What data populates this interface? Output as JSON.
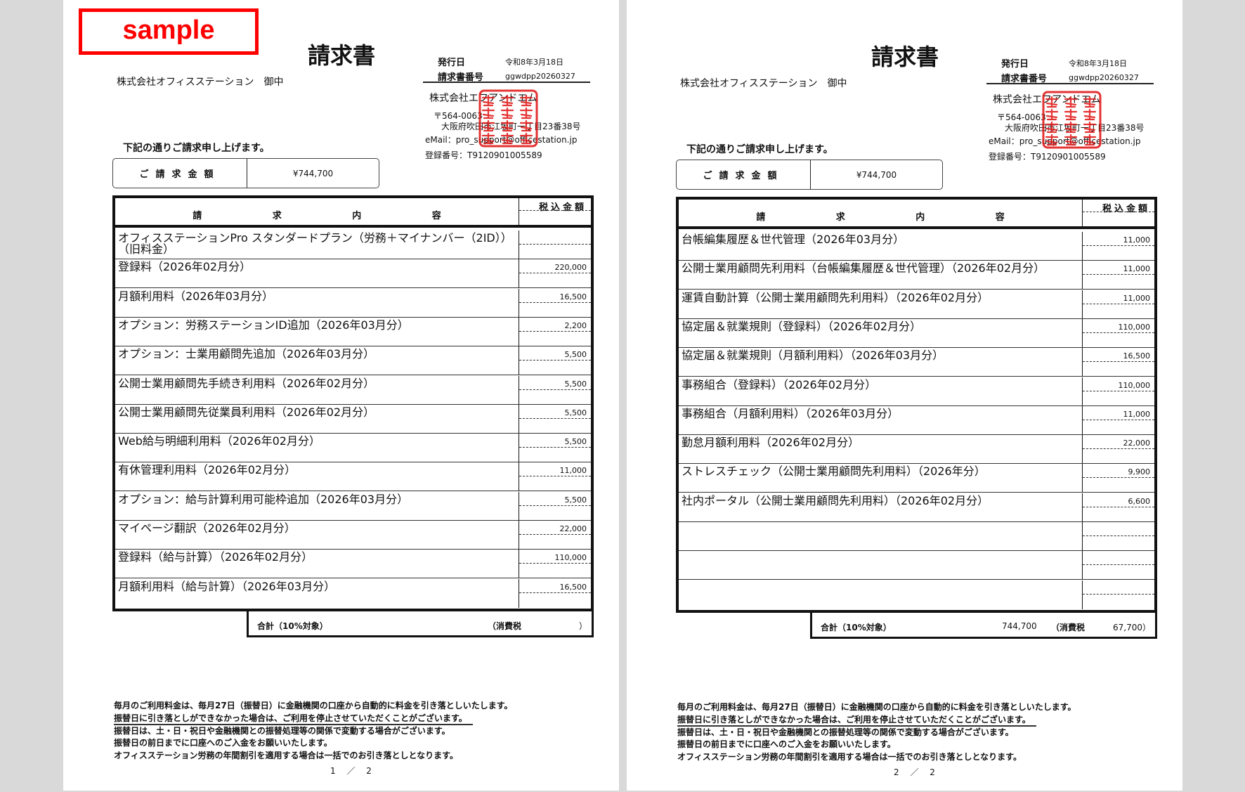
{
  "sample_label": "sample",
  "colors": {
    "background": "#d9d9d9",
    "stamp": "#e01010",
    "sample": "#ff0000"
  },
  "pages": [
    {
      "title": "請求書",
      "recipient": "株式会社オフィスステーション　御中",
      "issue_date_label": "発行日",
      "issue_date": "令和8年3月18日",
      "invoice_no_label": "請求書番号",
      "invoice_no": "ggwdpp20260327",
      "issuer": "株式会社エフアンドエム",
      "postal": "〒564-0063",
      "address": "大阪府吹田市江坂町一丁目23番38号",
      "email": "eMail：pro_support@officestation.jp",
      "registration": "登録番号：T9120901005589",
      "stamp_text": "株式会社エフアンドエム印",
      "intro": "下記の通りご請求申し上げます。",
      "amount_label": "ご請求金額",
      "amount": "¥744,700",
      "col_content": [
        "請",
        "求",
        "内",
        "容"
      ],
      "col_amount": "税込金額",
      "items": [
        {
          "desc": "オフィスステーションPro スタンダードプラン（労務＋マイナンバー（2ID））（旧料金）",
          "amount": ""
        },
        {
          "desc": "登録料（2026年02月分）",
          "amount": "220,000"
        },
        {
          "desc": "月額利用料（2026年03月分）",
          "amount": "16,500"
        },
        {
          "desc": "オプション：労務ステーションID追加（2026年03月分）",
          "amount": "2,200"
        },
        {
          "desc": "オプション：士業用顧問先追加（2026年03月分）",
          "amount": "5,500"
        },
        {
          "desc": "公開士業用顧問先手続き利用料（2026年02月分）",
          "amount": "5,500"
        },
        {
          "desc": "公開士業用顧問先従業員利用料（2026年02月分）",
          "amount": "5,500"
        },
        {
          "desc": "Web給与明細利用料（2026年02月分）",
          "amount": "5,500"
        },
        {
          "desc": "有休管理利用料（2026年02月分）",
          "amount": "11,000"
        },
        {
          "desc": "オプション：給与計算利用可能枠追加（2026年03月分）",
          "amount": "5,500"
        },
        {
          "desc": "マイページ翻訳（2026年02月分）",
          "amount": "22,000"
        },
        {
          "desc": "登録料（給与計算）（2026年02月分）",
          "amount": "110,000"
        },
        {
          "desc": "月額利用料（給与計算）（2026年03月分）",
          "amount": "16,500"
        }
      ],
      "total_label": "合計（10%対象）",
      "total_value": "",
      "tax_label": "（消費税",
      "tax_value": "）",
      "notes": [
        "毎月のご利用料金は、毎月27日（振替日）に金融機関の口座から自動的に料金を引き落としいたします。",
        "振替日に引き落としができなかった場合は、ご利用を停止させていただくことがございます。",
        "振替日は、土・日・祝日や金融機関との振替処理等の関係で変動する場合がございます。",
        "振替日の前日までに口座へのご入金をお願いいたします。",
        "オフィスステーション労務の年間割引を適用する場合は一括でのお引き落としとなります。"
      ],
      "page_number": "1 ／ 2"
    },
    {
      "title": "請求書",
      "recipient": "株式会社オフィスステーション　御中",
      "issue_date_label": "発行日",
      "issue_date": "令和8年3月18日",
      "invoice_no_label": "請求書番号",
      "invoice_no": "ggwdpp20260327",
      "issuer": "株式会社エフアンドエム",
      "postal": "〒564-0063",
      "address": "大阪府吹田市江坂町一丁目23番38号",
      "email": "eMail：pro_support@officestation.jp",
      "registration": "登録番号：T9120901005589",
      "stamp_text": "株式会社エフアンドエム印",
      "intro": "下記の通りご請求申し上げます。",
      "amount_label": "ご請求金額",
      "amount": "¥744,700",
      "col_content": [
        "請",
        "求",
        "内",
        "容"
      ],
      "col_amount": "税込金額",
      "items": [
        {
          "desc": "台帳編集履歴＆世代管理（2026年03月分）",
          "amount": "11,000"
        },
        {
          "desc": "公開士業用顧問先利用料（台帳編集履歴＆世代管理）（2026年02月分）",
          "amount": "11,000"
        },
        {
          "desc": "運賃自動計算（公開士業用顧問先利用料）（2026年02月分）",
          "amount": "11,000"
        },
        {
          "desc": "協定届＆就業規則（登録料）（2026年02月分）",
          "amount": "110,000"
        },
        {
          "desc": "協定届＆就業規則（月額利用料）（2026年03月分）",
          "amount": "16,500"
        },
        {
          "desc": "事務組合（登録料）（2026年02月分）",
          "amount": "110,000"
        },
        {
          "desc": "事務組合（月額利用料）（2026年03月分）",
          "amount": "11,000"
        },
        {
          "desc": "勤怠月額利用料（2026年02月分）",
          "amount": "22,000"
        },
        {
          "desc": "ストレスチェック（公開士業用顧問先利用料）（2026年分）",
          "amount": "9,900"
        },
        {
          "desc": "社内ポータル（公開士業用顧問先利用料）（2026年02月分）",
          "amount": "6,600"
        },
        {
          "desc": "",
          "amount": ""
        },
        {
          "desc": "",
          "amount": ""
        },
        {
          "desc": "",
          "amount": ""
        }
      ],
      "total_label": "合計（10%対象）",
      "total_value": "744,700",
      "tax_label": "（消費税",
      "tax_value": "67,700）",
      "notes": [
        "毎月のご利用料金は、毎月27日（振替日）に金融機関の口座から自動的に料金を引き落としいたします。",
        "振替日に引き落としができなかった場合は、ご利用を停止させていただくことがございます。",
        "振替日は、土・日・祝日や金融機関との振替処理等の関係で変動する場合がございます。",
        "振替日の前日までに口座へのご入金をお願いいたします。",
        "オフィスステーション労務の年間割引を適用する場合は一括でのお引き落としとなります。"
      ],
      "page_number": "2 ／ 2"
    }
  ]
}
